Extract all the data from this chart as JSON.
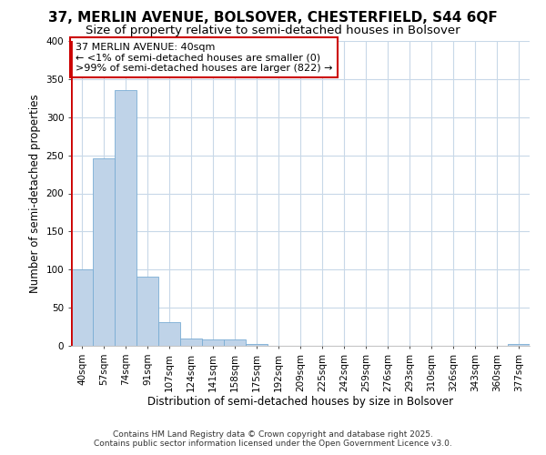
{
  "title": "37, MERLIN AVENUE, BOLSOVER, CHESTERFIELD, S44 6QF",
  "subtitle": "Size of property relative to semi-detached houses in Bolsover",
  "xlabel": "Distribution of semi-detached houses by size in Bolsover",
  "ylabel": "Number of semi-detached properties",
  "categories": [
    "40sqm",
    "57sqm",
    "74sqm",
    "91sqm",
    "107sqm",
    "124sqm",
    "141sqm",
    "158sqm",
    "175sqm",
    "192sqm",
    "209sqm",
    "225sqm",
    "242sqm",
    "259sqm",
    "276sqm",
    "293sqm",
    "310sqm",
    "326sqm",
    "343sqm",
    "360sqm",
    "377sqm"
  ],
  "values": [
    100,
    246,
    335,
    91,
    31,
    10,
    8,
    8,
    2,
    0,
    0,
    0,
    0,
    0,
    0,
    0,
    0,
    0,
    0,
    0,
    2
  ],
  "bar_color": "#bfd3e8",
  "bar_edge_color": "#7aadd4",
  "highlight_bar_index": 0,
  "highlight_left_color": "#cc0000",
  "annotation_text": "37 MERLIN AVENUE: 40sqm\n← <1% of semi-detached houses are smaller (0)\n>99% of semi-detached houses are larger (822) →",
  "annotation_box_color": "#ffffff",
  "annotation_box_edge_color": "#cc0000",
  "ylim": [
    0,
    400
  ],
  "yticks": [
    0,
    50,
    100,
    150,
    200,
    250,
    300,
    350,
    400
  ],
  "figure_bg_color": "#ffffff",
  "plot_bg_color": "#ffffff",
  "grid_color": "#c8d8e8",
  "footer_line1": "Contains HM Land Registry data © Crown copyright and database right 2025.",
  "footer_line2": "Contains public sector information licensed under the Open Government Licence v3.0.",
  "title_fontsize": 11,
  "subtitle_fontsize": 9.5,
  "ylabel_fontsize": 8.5,
  "xlabel_fontsize": 8.5,
  "tick_fontsize": 7.5,
  "annotation_fontsize": 8,
  "footer_fontsize": 6.5
}
